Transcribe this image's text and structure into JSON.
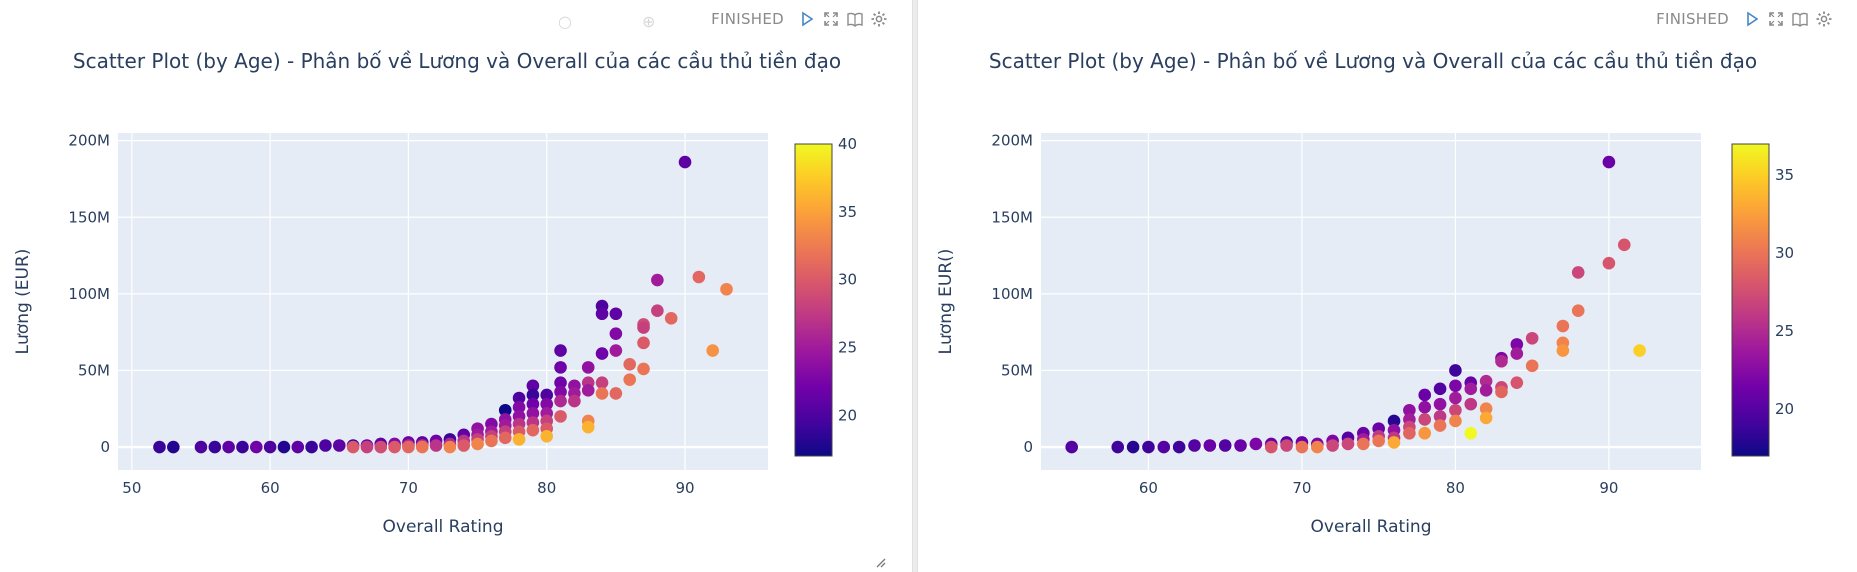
{
  "cells": [
    {
      "status": "FINISHED",
      "toolbar_icons": [
        "play-icon",
        "expand-icon",
        "book-icon",
        "gear-icon"
      ],
      "chart_data": {
        "type": "scatter",
        "title": "Scatter Plot (by Age) - Phân bố về Lương và Overall của các cầu thủ tiền đạo",
        "xlabel": "Overall Rating",
        "ylabel": "Lương (EUR)",
        "xlim": [
          49,
          96
        ],
        "ylim": [
          -15,
          205
        ],
        "xticks": [
          50,
          60,
          70,
          80,
          90
        ],
        "xtick_labels": [
          "50",
          "60",
          "70",
          "80",
          "90"
        ],
        "yticks": [
          0,
          50,
          100,
          150,
          200
        ],
        "ytick_labels": [
          "0",
          "50M",
          "100M",
          "150M",
          "200M"
        ],
        "colorbar": {
          "min": 17,
          "max": 40,
          "ticks": [
            20,
            25,
            30,
            35,
            40
          ],
          "tick_labels": [
            "20",
            "25",
            "30",
            "35",
            "40"
          ]
        },
        "grid": true,
        "points": [
          {
            "x": 52,
            "y": 0,
            "age": 19
          },
          {
            "x": 53,
            "y": 0,
            "age": 18
          },
          {
            "x": 55,
            "y": 0,
            "age": 20
          },
          {
            "x": 56,
            "y": 0,
            "age": 19
          },
          {
            "x": 57,
            "y": 0,
            "age": 21
          },
          {
            "x": 58,
            "y": 0,
            "age": 19
          },
          {
            "x": 59,
            "y": 0,
            "age": 22
          },
          {
            "x": 60,
            "y": 0,
            "age": 20
          },
          {
            "x": 61,
            "y": 0,
            "age": 18
          },
          {
            "x": 62,
            "y": 0,
            "age": 21
          },
          {
            "x": 63,
            "y": 0,
            "age": 19
          },
          {
            "x": 64,
            "y": 1,
            "age": 20
          },
          {
            "x": 65,
            "y": 1,
            "age": 21
          },
          {
            "x": 66,
            "y": 1,
            "age": 19
          },
          {
            "x": 66,
            "y": 0,
            "age": 30
          },
          {
            "x": 67,
            "y": 1,
            "age": 22
          },
          {
            "x": 67,
            "y": 0,
            "age": 28
          },
          {
            "x": 68,
            "y": 2,
            "age": 21
          },
          {
            "x": 68,
            "y": 0,
            "age": 29
          },
          {
            "x": 69,
            "y": 2,
            "age": 23
          },
          {
            "x": 69,
            "y": 0,
            "age": 30
          },
          {
            "x": 70,
            "y": 3,
            "age": 22
          },
          {
            "x": 70,
            "y": 1,
            "age": 26
          },
          {
            "x": 70,
            "y": 0,
            "age": 31
          },
          {
            "x": 71,
            "y": 3,
            "age": 21
          },
          {
            "x": 71,
            "y": 1,
            "age": 27
          },
          {
            "x": 71,
            "y": 0,
            "age": 32
          },
          {
            "x": 72,
            "y": 4,
            "age": 22
          },
          {
            "x": 72,
            "y": 1,
            "age": 27
          },
          {
            "x": 73,
            "y": 5,
            "age": 19
          },
          {
            "x": 73,
            "y": 2,
            "age": 26
          },
          {
            "x": 73,
            "y": 0,
            "age": 33
          },
          {
            "x": 74,
            "y": 8,
            "age": 21
          },
          {
            "x": 74,
            "y": 4,
            "age": 27
          },
          {
            "x": 74,
            "y": 1,
            "age": 30
          },
          {
            "x": 75,
            "y": 12,
            "age": 24
          },
          {
            "x": 75,
            "y": 8,
            "age": 25
          },
          {
            "x": 75,
            "y": 5,
            "age": 28
          },
          {
            "x": 75,
            "y": 2,
            "age": 33
          },
          {
            "x": 76,
            "y": 15,
            "age": 23
          },
          {
            "x": 76,
            "y": 10,
            "age": 25
          },
          {
            "x": 76,
            "y": 7,
            "age": 28
          },
          {
            "x": 76,
            "y": 4,
            "age": 32
          },
          {
            "x": 77,
            "y": 24,
            "age": 17
          },
          {
            "x": 77,
            "y": 18,
            "age": 24
          },
          {
            "x": 77,
            "y": 14,
            "age": 25
          },
          {
            "x": 77,
            "y": 10,
            "age": 28
          },
          {
            "x": 77,
            "y": 6,
            "age": 31
          },
          {
            "x": 78,
            "y": 32,
            "age": 20
          },
          {
            "x": 78,
            "y": 26,
            "age": 23
          },
          {
            "x": 78,
            "y": 20,
            "age": 24
          },
          {
            "x": 78,
            "y": 15,
            "age": 27
          },
          {
            "x": 78,
            "y": 10,
            "age": 30
          },
          {
            "x": 78,
            "y": 5,
            "age": 36
          },
          {
            "x": 79,
            "y": 40,
            "age": 21
          },
          {
            "x": 79,
            "y": 34,
            "age": 19
          },
          {
            "x": 79,
            "y": 28,
            "age": 22
          },
          {
            "x": 79,
            "y": 22,
            "age": 24
          },
          {
            "x": 79,
            "y": 16,
            "age": 27
          },
          {
            "x": 79,
            "y": 11,
            "age": 31
          },
          {
            "x": 80,
            "y": 34,
            "age": 20
          },
          {
            "x": 80,
            "y": 28,
            "age": 23
          },
          {
            "x": 80,
            "y": 22,
            "age": 25
          },
          {
            "x": 80,
            "y": 17,
            "age": 28
          },
          {
            "x": 80,
            "y": 12,
            "age": 30
          },
          {
            "x": 80,
            "y": 7,
            "age": 36
          },
          {
            "x": 81,
            "y": 63,
            "age": 21
          },
          {
            "x": 81,
            "y": 52,
            "age": 22
          },
          {
            "x": 81,
            "y": 42,
            "age": 22
          },
          {
            "x": 81,
            "y": 36,
            "age": 23
          },
          {
            "x": 81,
            "y": 30,
            "age": 26
          },
          {
            "x": 81,
            "y": 20,
            "age": 30
          },
          {
            "x": 82,
            "y": 40,
            "age": 24
          },
          {
            "x": 82,
            "y": 35,
            "age": 25
          },
          {
            "x": 82,
            "y": 30,
            "age": 27
          },
          {
            "x": 83,
            "y": 52,
            "age": 24
          },
          {
            "x": 83,
            "y": 42,
            "age": 27
          },
          {
            "x": 83,
            "y": 37,
            "age": 25
          },
          {
            "x": 83,
            "y": 17,
            "age": 33
          },
          {
            "x": 83,
            "y": 13,
            "age": 36
          },
          {
            "x": 84,
            "y": 92,
            "age": 20
          },
          {
            "x": 84,
            "y": 87,
            "age": 21
          },
          {
            "x": 84,
            "y": 61,
            "age": 22
          },
          {
            "x": 84,
            "y": 42,
            "age": 28
          },
          {
            "x": 84,
            "y": 35,
            "age": 32
          },
          {
            "x": 85,
            "y": 87,
            "age": 21
          },
          {
            "x": 85,
            "y": 74,
            "age": 23
          },
          {
            "x": 85,
            "y": 63,
            "age": 25
          },
          {
            "x": 85,
            "y": 35,
            "age": 31
          },
          {
            "x": 86,
            "y": 54,
            "age": 31
          },
          {
            "x": 86,
            "y": 44,
            "age": 32
          },
          {
            "x": 87,
            "y": 80,
            "age": 29
          },
          {
            "x": 87,
            "y": 78,
            "age": 28
          },
          {
            "x": 87,
            "y": 68,
            "age": 30
          },
          {
            "x": 87,
            "y": 51,
            "age": 32
          },
          {
            "x": 88,
            "y": 109,
            "age": 25
          },
          {
            "x": 88,
            "y": 89,
            "age": 28
          },
          {
            "x": 89,
            "y": 84,
            "age": 31
          },
          {
            "x": 90,
            "y": 186,
            "age": 21
          },
          {
            "x": 91,
            "y": 111,
            "age": 31
          },
          {
            "x": 92,
            "y": 63,
            "age": 34
          },
          {
            "x": 93,
            "y": 103,
            "age": 33
          }
        ]
      }
    },
    {
      "status": "FINISHED",
      "toolbar_icons": [
        "play-icon",
        "expand-icon",
        "book-icon",
        "gear-icon"
      ],
      "chart_data": {
        "type": "scatter",
        "title": "Scatter Plot (by Age) - Phân bố về Lương và Overall của các cầu thủ tiền đạo",
        "xlabel": "Overall Rating",
        "ylabel": "Lương EUR()",
        "xlim": [
          53,
          96
        ],
        "ylim": [
          -15,
          205
        ],
        "xticks": [
          60,
          70,
          80,
          90
        ],
        "xtick_labels": [
          "60",
          "70",
          "80",
          "90"
        ],
        "yticks": [
          0,
          50,
          100,
          150,
          200
        ],
        "ytick_labels": [
          "0",
          "50M",
          "100M",
          "150M",
          "200M"
        ],
        "colorbar": {
          "min": 17,
          "max": 37,
          "ticks": [
            20,
            25,
            30,
            35
          ],
          "tick_labels": [
            "20",
            "25",
            "30",
            "35"
          ]
        },
        "grid": true,
        "points": [
          {
            "x": 55,
            "y": 0,
            "age": 20
          },
          {
            "x": 58,
            "y": 0,
            "age": 19
          },
          {
            "x": 59,
            "y": 0,
            "age": 18
          },
          {
            "x": 60,
            "y": 0,
            "age": 19
          },
          {
            "x": 61,
            "y": 0,
            "age": 20
          },
          {
            "x": 62,
            "y": 0,
            "age": 19
          },
          {
            "x": 63,
            "y": 1,
            "age": 20
          },
          {
            "x": 64,
            "y": 1,
            "age": 21
          },
          {
            "x": 65,
            "y": 1,
            "age": 20
          },
          {
            "x": 66,
            "y": 1,
            "age": 21
          },
          {
            "x": 67,
            "y": 2,
            "age": 22
          },
          {
            "x": 68,
            "y": 2,
            "age": 21
          },
          {
            "x": 68,
            "y": 0,
            "age": 28
          },
          {
            "x": 69,
            "y": 3,
            "age": 20
          },
          {
            "x": 69,
            "y": 1,
            "age": 27
          },
          {
            "x": 70,
            "y": 3,
            "age": 21
          },
          {
            "x": 70,
            "y": 0,
            "age": 30
          },
          {
            "x": 71,
            "y": 2,
            "age": 22
          },
          {
            "x": 71,
            "y": 0,
            "age": 31
          },
          {
            "x": 72,
            "y": 4,
            "age": 22
          },
          {
            "x": 72,
            "y": 1,
            "age": 27
          },
          {
            "x": 73,
            "y": 6,
            "age": 20
          },
          {
            "x": 73,
            "y": 2,
            "age": 27
          },
          {
            "x": 74,
            "y": 9,
            "age": 21
          },
          {
            "x": 74,
            "y": 5,
            "age": 24
          },
          {
            "x": 74,
            "y": 2,
            "age": 30
          },
          {
            "x": 75,
            "y": 12,
            "age": 21
          },
          {
            "x": 75,
            "y": 7,
            "age": 26
          },
          {
            "x": 75,
            "y": 4,
            "age": 30
          },
          {
            "x": 76,
            "y": 17,
            "age": 18
          },
          {
            "x": 76,
            "y": 11,
            "age": 23
          },
          {
            "x": 76,
            "y": 6,
            "age": 26
          },
          {
            "x": 76,
            "y": 3,
            "age": 33
          },
          {
            "x": 77,
            "y": 24,
            "age": 23
          },
          {
            "x": 77,
            "y": 18,
            "age": 24
          },
          {
            "x": 77,
            "y": 13,
            "age": 27
          },
          {
            "x": 77,
            "y": 9,
            "age": 29
          },
          {
            "x": 78,
            "y": 34,
            "age": 21
          },
          {
            "x": 78,
            "y": 26,
            "age": 23
          },
          {
            "x": 78,
            "y": 18,
            "age": 27
          },
          {
            "x": 78,
            "y": 9,
            "age": 32
          },
          {
            "x": 79,
            "y": 38,
            "age": 20
          },
          {
            "x": 79,
            "y": 28,
            "age": 23
          },
          {
            "x": 79,
            "y": 20,
            "age": 26
          },
          {
            "x": 79,
            "y": 14,
            "age": 30
          },
          {
            "x": 80,
            "y": 50,
            "age": 19
          },
          {
            "x": 80,
            "y": 40,
            "age": 22
          },
          {
            "x": 80,
            "y": 32,
            "age": 24
          },
          {
            "x": 80,
            "y": 24,
            "age": 27
          },
          {
            "x": 80,
            "y": 17,
            "age": 31
          },
          {
            "x": 81,
            "y": 42,
            "age": 21
          },
          {
            "x": 81,
            "y": 38,
            "age": 24
          },
          {
            "x": 81,
            "y": 28,
            "age": 26
          },
          {
            "x": 81,
            "y": 9,
            "age": 37
          },
          {
            "x": 82,
            "y": 43,
            "age": 25
          },
          {
            "x": 82,
            "y": 37,
            "age": 24
          },
          {
            "x": 82,
            "y": 25,
            "age": 31
          },
          {
            "x": 82,
            "y": 19,
            "age": 33
          },
          {
            "x": 83,
            "y": 58,
            "age": 22
          },
          {
            "x": 83,
            "y": 56,
            "age": 25
          },
          {
            "x": 83,
            "y": 39,
            "age": 27
          },
          {
            "x": 83,
            "y": 36,
            "age": 29
          },
          {
            "x": 84,
            "y": 67,
            "age": 22
          },
          {
            "x": 84,
            "y": 61,
            "age": 24
          },
          {
            "x": 84,
            "y": 42,
            "age": 28
          },
          {
            "x": 85,
            "y": 71,
            "age": 27
          },
          {
            "x": 85,
            "y": 53,
            "age": 30
          },
          {
            "x": 87,
            "y": 79,
            "age": 30
          },
          {
            "x": 87,
            "y": 68,
            "age": 31
          },
          {
            "x": 87,
            "y": 63,
            "age": 32
          },
          {
            "x": 88,
            "y": 114,
            "age": 27
          },
          {
            "x": 88,
            "y": 89,
            "age": 30
          },
          {
            "x": 90,
            "y": 186,
            "age": 21
          },
          {
            "x": 90,
            "y": 120,
            "age": 28
          },
          {
            "x": 91,
            "y": 132,
            "age": 28
          },
          {
            "x": 92,
            "y": 63,
            "age": 35
          }
        ]
      }
    }
  ]
}
